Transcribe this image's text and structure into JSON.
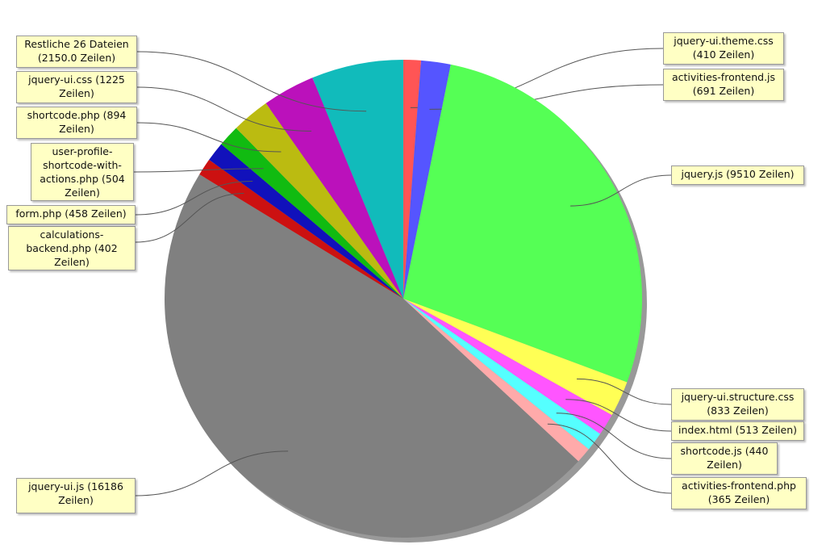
{
  "chart_data": {
    "type": "pie",
    "values": [
      410,
      691,
      9510,
      833,
      513,
      440,
      365,
      16186,
      402,
      458,
      504,
      894,
      1225,
      2150.0
    ],
    "value_labels": [
      "jquery-ui.theme.css (410 Zeilen)",
      "activities-frontend.js (691 Zeilen)",
      "jquery.js (9510 Zeilen)",
      "jquery-ui.structure.css (833 Zeilen)",
      "index.html (513 Zeilen)",
      "shortcode.js (440 Zeilen)",
      "activities-frontend.php (365 Zeilen)",
      "jquery-ui.js (16186 Zeilen)",
      "calculations-backend.php (402 Zeilen)",
      "form.php (458 Zeilen)",
      "user-profile-shortcode-with-actions.php (504 Zeilen)",
      "shortcode.php (894 Zeilen)",
      "jquery-ui.css (1225 Zeilen)",
      "Restliche 26 Dateien (2150.0 Zeilen)"
    ],
    "colors": [
      "#ff5555",
      "#5555ff",
      "#55ff55",
      "#ffff55",
      "#ff55ff",
      "#55ffff",
      "#ffaaaa",
      "#808080",
      "#cc1111",
      "#1111bb",
      "#11bb11",
      "#bbbb11",
      "#bb11bb",
      "#11bbbb"
    ]
  }
}
